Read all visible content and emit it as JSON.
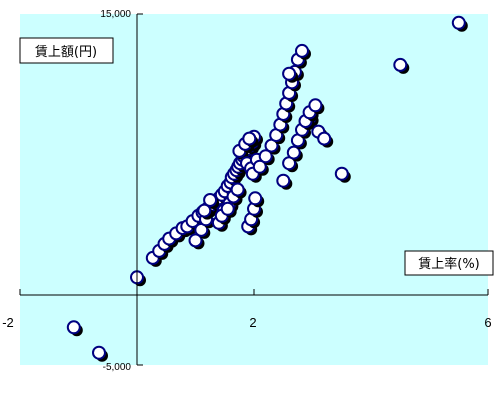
{
  "chart_data": {
    "type": "scatter",
    "title": "",
    "ylabel": "賃上額(円)",
    "xlabel": "賃上率(%)",
    "xlim": [
      -2,
      6
    ],
    "ylim": [
      -5000,
      15000
    ],
    "x_ticks": [
      "-2",
      "2",
      "6"
    ],
    "y_ticks": [
      "15,000",
      "-5,000"
    ],
    "grid": false,
    "legend": "none",
    "colors": {
      "plot_background": "#ccffff",
      "marker_fill": "#ffffff",
      "marker_edge": "#000080",
      "marker_shadow": "#000000",
      "axis": "#000000"
    },
    "series": [
      {
        "x": [
          -1.08,
          -0.65,
          0.0,
          0.27,
          0.38,
          0.47,
          0.55,
          0.67,
          0.78,
          0.86,
          0.95,
          1.05,
          1.12,
          1.2,
          1.25,
          1.33,
          1.4,
          1.45,
          1.5,
          1.55,
          1.6,
          1.62,
          1.66,
          1.7,
          1.73,
          1.76,
          1.8,
          1.82,
          1.85,
          1.9,
          1.93,
          1.97,
          2.0,
          1.75,
          1.85,
          1.92,
          1.88,
          1.95,
          1.98,
          2.05,
          2.1,
          2.2,
          2.3,
          2.38,
          2.45,
          2.5,
          2.55,
          2.6,
          2.65,
          2.7,
          2.75,
          2.82,
          2.95,
          3.1,
          3.2,
          2.5,
          2.6,
          2.68,
          2.75,
          2.82,
          2.88,
          2.95,
          3.05,
          1.0,
          1.1,
          1.18,
          1.4,
          1.48,
          1.58,
          1.65,
          1.72,
          1.9,
          1.95,
          2.0,
          2.02,
          1.45,
          1.55,
          1.25,
          1.15,
          2.6,
          3.5,
          4.5,
          5.5
        ],
        "y": [
          -2850,
          -4300,
          0,
          1100,
          1500,
          1900,
          2200,
          2500,
          2800,
          2900,
          3200,
          3500,
          3700,
          3900,
          4100,
          4300,
          4500,
          4700,
          4900,
          5200,
          5400,
          5700,
          5900,
          6100,
          6300,
          6500,
          6700,
          6900,
          7100,
          7300,
          7500,
          7700,
          8000,
          7200,
          7600,
          7900,
          6500,
          6200,
          5900,
          6700,
          6300,
          6900,
          7500,
          8100,
          8700,
          9300,
          9900,
          10500,
          11100,
          11700,
          12400,
          12900,
          9100,
          8300,
          7900,
          5500,
          6500,
          7100,
          7800,
          8400,
          8900,
          9400,
          9800,
          2100,
          2700,
          3300,
          3100,
          3800,
          4200,
          4600,
          5000,
          2900,
          3300,
          3900,
          4500,
          3500,
          3900,
          4400,
          3800,
          11600,
          5900,
          12100,
          14500
        ]
      }
    ]
  }
}
